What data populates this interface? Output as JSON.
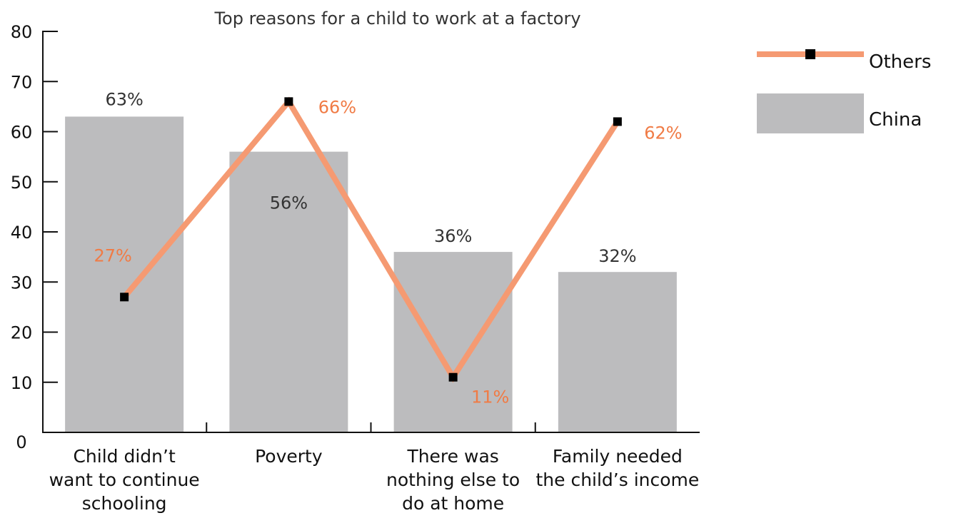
{
  "chart_data": {
    "type": "bar",
    "title": "Top reasons for a child to work at a factory",
    "xlabel": "",
    "ylabel": "",
    "ylim": [
      0,
      80
    ],
    "yticks": [
      0,
      10,
      20,
      30,
      40,
      50,
      60,
      70,
      80
    ],
    "grid": false,
    "legend_position": "top-right",
    "categories": [
      [
        "Child didn’t",
        "want to continue",
        "schooling"
      ],
      [
        "Poverty"
      ],
      [
        "There was",
        "nothing else to",
        "do at home"
      ],
      [
        "Family needed",
        "the child’s income"
      ]
    ],
    "series": [
      {
        "name": "China",
        "type": "bar",
        "color": "#bcbcbe",
        "values": [
          63,
          56,
          36,
          32
        ],
        "labels": [
          "63%",
          "56%",
          "36%",
          "32%"
        ]
      },
      {
        "name": "Others",
        "type": "line",
        "color": "#f59a72",
        "marker_color": "#000000",
        "label_color": "#f07b45",
        "values": [
          27,
          66,
          11,
          62
        ],
        "labels": [
          "27%",
          "66%",
          "11%",
          "62%"
        ]
      }
    ]
  }
}
